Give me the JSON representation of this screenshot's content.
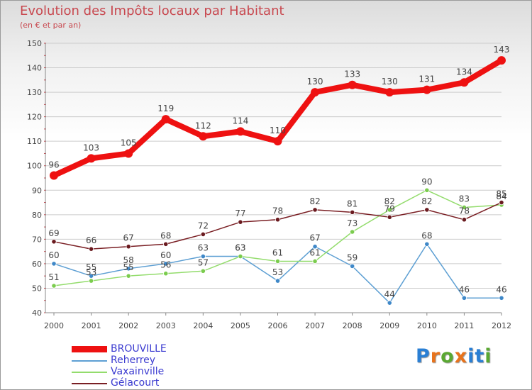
{
  "header": {
    "title": "Evolution des Impôts locaux par Habitant",
    "subtitle": "(en € et par an)"
  },
  "logo": {
    "letters": [
      "P",
      "r",
      "o",
      "x",
      "i",
      "t",
      "i"
    ],
    "colors": [
      "#2a7fd4",
      "#e8731c",
      "#5aa832",
      "#e8731c",
      "#2a7fd4",
      "#2a7fd4",
      "#5aa832"
    ]
  },
  "chart_data": {
    "type": "line",
    "title": "Evolution des Impôts locaux par Habitant",
    "subtitle": "(en € et par an)",
    "xlabel": "",
    "ylabel": "",
    "ylim": [
      40,
      150
    ],
    "yticks": [
      40,
      50,
      60,
      70,
      80,
      90,
      100,
      110,
      120,
      130,
      140,
      150
    ],
    "grid": "horizontal",
    "legend_position": "bottom-left",
    "x": [
      "2000",
      "2001",
      "2002",
      "2003",
      "2004",
      "2005",
      "2006",
      "2007",
      "2008",
      "2009",
      "2010",
      "2011",
      "2012"
    ],
    "series": [
      {
        "name": "BROUVILLE",
        "color": "#ee1111",
        "marker_color": "#ee1111",
        "label_color": "#444444",
        "values": [
          96,
          103,
          105,
          119,
          112,
          114,
          110,
          130,
          133,
          130,
          131,
          134,
          143
        ]
      },
      {
        "name": "Reherrey",
        "color": "#5d9fd3",
        "marker_color": "#3f88c8",
        "label_color": "#444444",
        "values": [
          60,
          55,
          58,
          60,
          63,
          63,
          53,
          67,
          59,
          44,
          68,
          46,
          46
        ]
      },
      {
        "name": "Vaxainville",
        "color": "#93dc6c",
        "marker_color": "#7bcc4e",
        "label_color": "#444444",
        "values": [
          51,
          53,
          55,
          56,
          57,
          63,
          61,
          61,
          73,
          82,
          90,
          83,
          84
        ]
      },
      {
        "name": "Gélacourt",
        "color": "#7a1f24",
        "marker_color": "#6a1a1f",
        "label_color": "#444444",
        "values": [
          69,
          66,
          67,
          68,
          72,
          77,
          78,
          82,
          81,
          79,
          82,
          78,
          85
        ]
      }
    ]
  }
}
